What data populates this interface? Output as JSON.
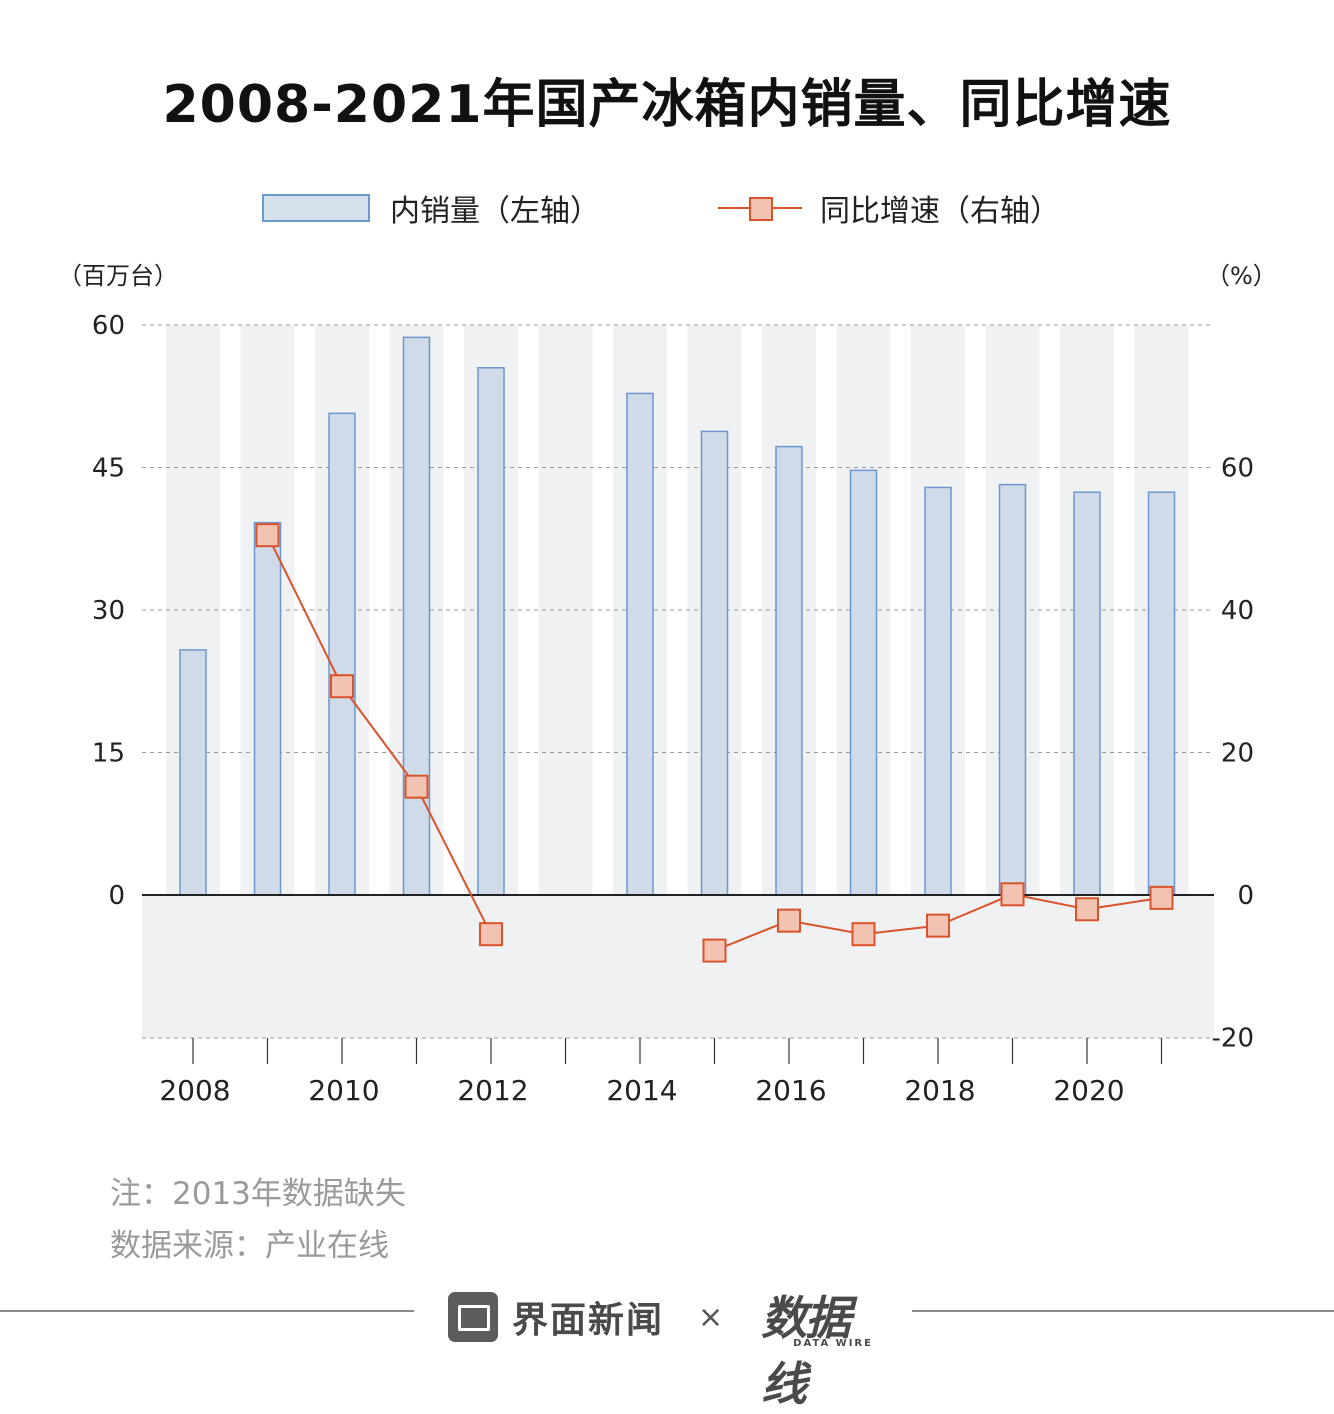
{
  "title": "2008-2021年国产冰箱内销量、同比增速",
  "legend": {
    "bar_label": "内销量（左轴）",
    "line_label": "同比增速（右轴）"
  },
  "units": {
    "left": "（百万台）",
    "right": "（%）"
  },
  "notes": {
    "note": "注：2013年数据缺失",
    "source": "数据来源：产业在线"
  },
  "footer": {
    "brand": "界面新闻",
    "times": "×",
    "partner_logo": "数据线",
    "partner_logo_sub": "DATA WIRE"
  },
  "colors": {
    "bar_fill": "#cfdbe8",
    "bar_stroke": "#6b98cf",
    "line": "#d9532c",
    "marker_fill": "#f2c3b2",
    "band": "#f0f1f2"
  },
  "chart_data": {
    "type": "bar",
    "categories": [
      2008,
      2009,
      2010,
      2011,
      2012,
      2013,
      2014,
      2015,
      2016,
      2017,
      2018,
      2019,
      2020,
      2021
    ],
    "x_tick_labels": [
      "2008",
      "2010",
      "2012",
      "2014",
      "2016",
      "2018",
      "2020"
    ],
    "series": [
      {
        "name": "内销量（左轴）",
        "type": "bar",
        "axis": "left",
        "values": [
          25.8,
          39.2,
          50.7,
          58.7,
          55.5,
          null,
          52.8,
          48.8,
          47.2,
          44.7,
          42.9,
          43.2,
          42.4,
          42.4
        ]
      },
      {
        "name": "同比增速（右轴）",
        "type": "line",
        "axis": "right",
        "values": [
          null,
          50.5,
          29.3,
          15.2,
          -5.5,
          null,
          null,
          -7.8,
          -3.6,
          -5.5,
          -4.3,
          0.1,
          -2.0,
          -0.4
        ]
      }
    ],
    "left_axis": {
      "ticks": [
        "60",
        "45",
        "30",
        "15",
        "0"
      ],
      "ylim": [
        -15,
        60
      ]
    },
    "right_axis": {
      "ticks": [
        "60",
        "40",
        "20",
        "0",
        "-20"
      ],
      "ylim": [
        -20,
        80
      ]
    }
  }
}
